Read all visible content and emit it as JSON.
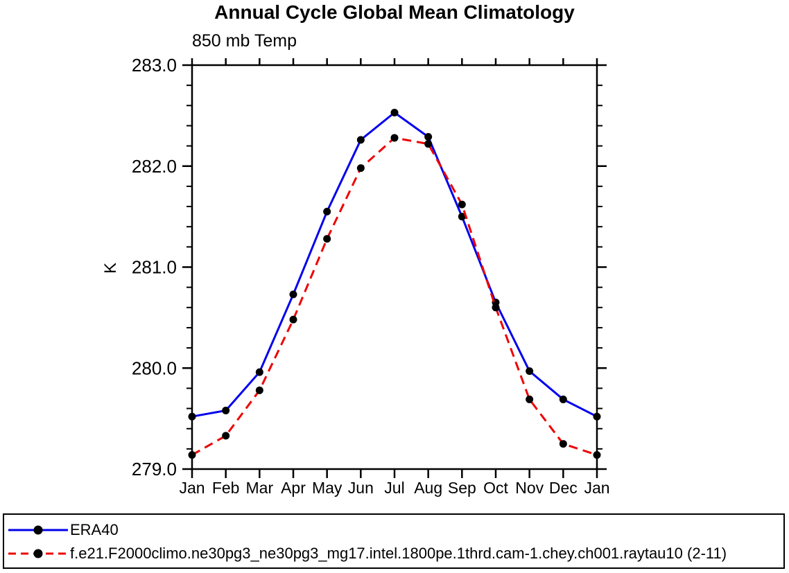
{
  "title": "Annual Cycle Global Mean Climatology",
  "chart": {
    "subtitle": "850 mb Temp",
    "ylabel": "K"
  },
  "chart_data": {
    "type": "line",
    "title": "Annual Cycle Global Mean Climatology",
    "subtitle": "850 mb Temp",
    "ylabel": "K",
    "xlabel": "",
    "x_categories": [
      "Jan",
      "Feb",
      "Mar",
      "Apr",
      "May",
      "Jun",
      "Jul",
      "Aug",
      "Sep",
      "Oct",
      "Nov",
      "Dec",
      "Jan"
    ],
    "series": [
      {
        "name": "ERA40",
        "color": "#0000ee",
        "line_style": "solid",
        "marker": "circle",
        "marker_color": "#000000",
        "values": [
          279.52,
          279.58,
          279.96,
          280.73,
          281.55,
          282.26,
          282.53,
          282.29,
          281.5,
          280.65,
          279.97,
          279.69,
          279.52
        ]
      },
      {
        "name": "f.e21.F2000climo.ne30pg3_ne30pg3_mg17.intel.1800pe.1thrd.cam-1.chey.ch001.raytau10 (2-11)",
        "color": "#ee0000",
        "line_style": "dashed",
        "marker": "circle",
        "marker_color": "#000000",
        "values": [
          279.14,
          279.33,
          279.78,
          280.48,
          281.28,
          281.98,
          282.28,
          282.22,
          281.62,
          280.6,
          279.69,
          279.25,
          279.14
        ]
      }
    ],
    "ylim": [
      279.0,
      283.0
    ],
    "ytick_labels": [
      "279.0",
      "280.0",
      "281.0",
      "282.0",
      "283.0"
    ],
    "ytick_major_step": 1.0,
    "ytick_minor_step": 0.2,
    "grid": "off",
    "axis_color": "#000000",
    "legend_position": "bottom-box"
  },
  "legend": {
    "entries": [
      {
        "label": "ERA40",
        "line_color": "#0000ee",
        "line_style": "solid",
        "marker_color": "#000000"
      },
      {
        "label": "f.e21.F2000climo.ne30pg3_ne30pg3_mg17.intel.1800pe.1thrd.cam-1.chey.ch001.raytau10 (2-11)",
        "line_color": "#ee0000",
        "line_style": "dashed",
        "marker_color": "#000000"
      }
    ]
  }
}
